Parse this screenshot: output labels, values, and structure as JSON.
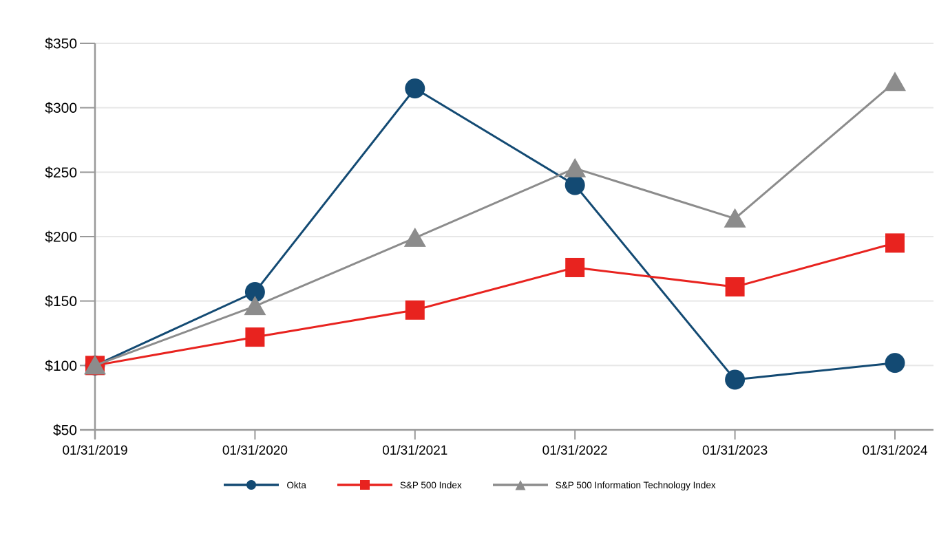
{
  "chart_data": {
    "type": "line",
    "title": "",
    "xlabel": "",
    "ylabel": "",
    "x_tick_labels": [
      "01/31/2019",
      "01/31/2020",
      "01/31/2021",
      "01/31/2022",
      "01/31/2023",
      "01/31/2024"
    ],
    "y_ticks": [
      350,
      300,
      250,
      200,
      150,
      100,
      50
    ],
    "y_tick_labels": [
      "$350",
      "$300",
      "$250",
      "$200",
      "$150",
      "$100",
      "$50"
    ],
    "y_prefix": "$",
    "ylim": [
      50,
      350
    ],
    "grid": "horizontal-only",
    "legend_position": "bottom-center",
    "series": [
      {
        "name": "Okta",
        "marker": "circle",
        "color": "#134A73",
        "values": [
          100,
          157,
          315,
          240,
          89,
          102
        ]
      },
      {
        "name": "S&P 500 Index",
        "marker": "square",
        "color": "#E8231F",
        "values": [
          100,
          122,
          143,
          176,
          161,
          195
        ]
      },
      {
        "name": "S&P 500 Information Technology Index",
        "marker": "triangle",
        "color": "#8C8C8C",
        "values": [
          100,
          146,
          199,
          253,
          214,
          320
        ]
      }
    ],
    "colors": {
      "axis": "#999999",
      "gridline": "#E7E7E7",
      "text": "#000000"
    }
  }
}
